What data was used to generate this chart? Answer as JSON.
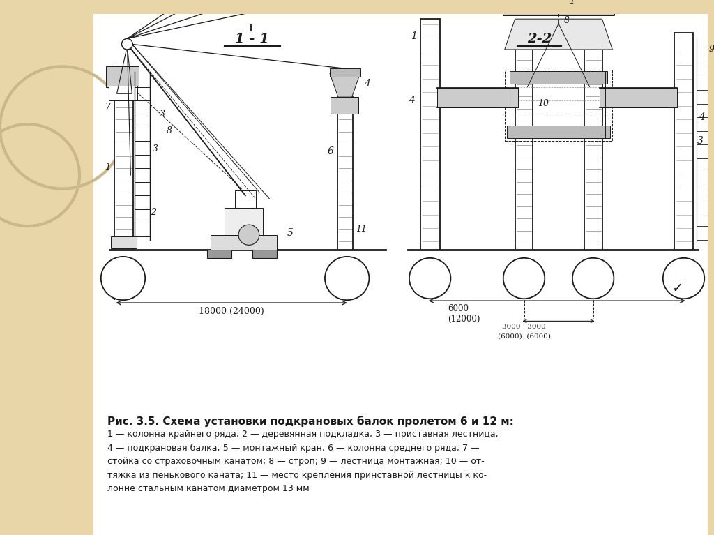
{
  "bg_left_color": "#e8d5a8",
  "bg_right_color": "#ffffff",
  "line_color": "#1a1a1a",
  "title_text": "Рис. 3.5. Схема установки подкрановых балок пролетом 6 и 12 м:",
  "caption_line1": "1 — колонна крайнего ряда; 2 — деревянная подкладка; 3 — приставная лестница;",
  "caption_line2": "4 — подкрановая балка; 5 — монтажный кран; 6 — колонна среднего ряда; 7 —",
  "caption_line3": "стойка со страховочным канатом; 8 — строп; 9 — лестница монтажная; 10 — от-",
  "caption_line4": "тяжка из пенькового каната; 11 — место крепления принставной лестницы к ко-",
  "caption_line5": "лонне стальным канатом диаметром 13 мм",
  "section1_label": "1 - 1",
  "section2_label": "2-2",
  "dim1_text": "18000 (24000)",
  "dim2_text": "6000\n(12000)",
  "dim3_text": "3000   3000",
  "dim4_text": "(6000)  (6000)"
}
